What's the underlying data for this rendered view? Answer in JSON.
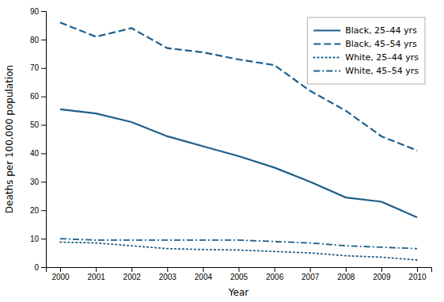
{
  "chart_data": {
    "type": "line",
    "xlabel": "Year",
    "ylabel": "Deaths per 100,000 population",
    "x": [
      2000,
      2001,
      2002,
      2003,
      2004,
      2005,
      2006,
      2007,
      2008,
      2009,
      2010
    ],
    "xlim": [
      1999.6,
      2010.4
    ],
    "xticks": [
      2000,
      2001,
      2002,
      2003,
      2004,
      2005,
      2006,
      2007,
      2008,
      2009,
      2010
    ],
    "ylim": [
      0,
      90
    ],
    "yticks": [
      0,
      10,
      20,
      30,
      40,
      50,
      60,
      70,
      80,
      90
    ],
    "legend": "upper right",
    "series": [
      {
        "name": "Black, 25–44 yrs",
        "color": "#1f5f8b",
        "line_style": "solid",
        "values": [
          55.5,
          54.0,
          51.0,
          46.0,
          42.5,
          39.0,
          35.0,
          30.0,
          24.5,
          23.0,
          17.5
        ]
      },
      {
        "name": "Black, 45–54 yrs",
        "color": "#1f5f8b",
        "line_style": "dashed",
        "values": [
          86.0,
          81.0,
          84.0,
          77.0,
          75.5,
          73.0,
          71.0,
          62.0,
          55.0,
          46.0,
          41.0
        ]
      },
      {
        "name": "White, 25–44 yrs",
        "color": "#1f5f8b",
        "line_style": "dotted",
        "values": [
          8.8,
          8.5,
          7.5,
          6.5,
          6.2,
          6.0,
          5.5,
          5.0,
          4.0,
          3.5,
          2.5
        ]
      },
      {
        "name": "White, 45–54 yrs",
        "color": "#1f5f8b",
        "line_style": "dashdot",
        "values": [
          10.0,
          9.5,
          9.5,
          9.5,
          9.5,
          9.5,
          9.0,
          8.5,
          7.5,
          7.0,
          6.5
        ]
      }
    ]
  }
}
